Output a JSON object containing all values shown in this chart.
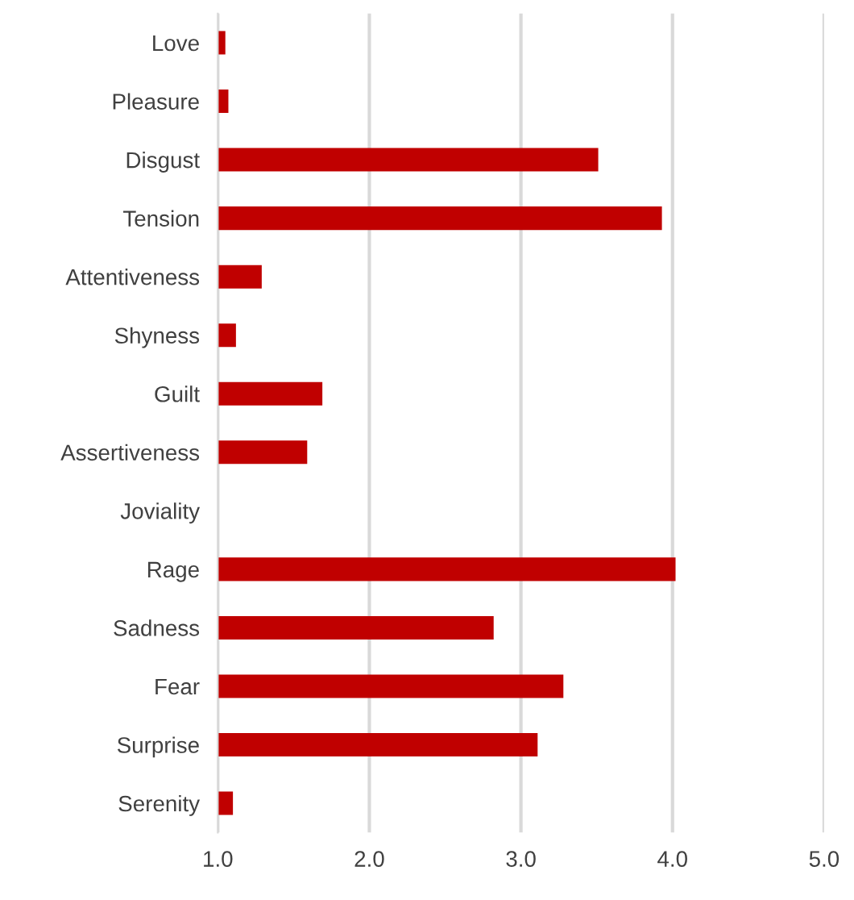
{
  "chart_data": {
    "type": "bar",
    "orientation": "horizontal",
    "categories": [
      "Love",
      "Pleasure",
      "Disgust",
      "Tension",
      "Attentiveness",
      "Shyness",
      "Guilt",
      "Assertiveness",
      "Joviality",
      "Rage",
      "Sadness",
      "Fear",
      "Surprise",
      "Serenity"
    ],
    "values": [
      1.05,
      1.07,
      3.51,
      3.93,
      1.29,
      1.12,
      1.69,
      1.59,
      1.0,
      4.02,
      2.82,
      3.28,
      3.11,
      1.1
    ],
    "color": "#c00000",
    "xlim": [
      1,
      5
    ],
    "xticks": [
      {
        "value": 1,
        "label": "1.0"
      },
      {
        "value": 2,
        "label": "2.0"
      },
      {
        "value": 3,
        "label": "3.0"
      },
      {
        "value": 4,
        "label": "4.0"
      },
      {
        "value": 5,
        "label": "5.0"
      }
    ],
    "grid": "x"
  }
}
